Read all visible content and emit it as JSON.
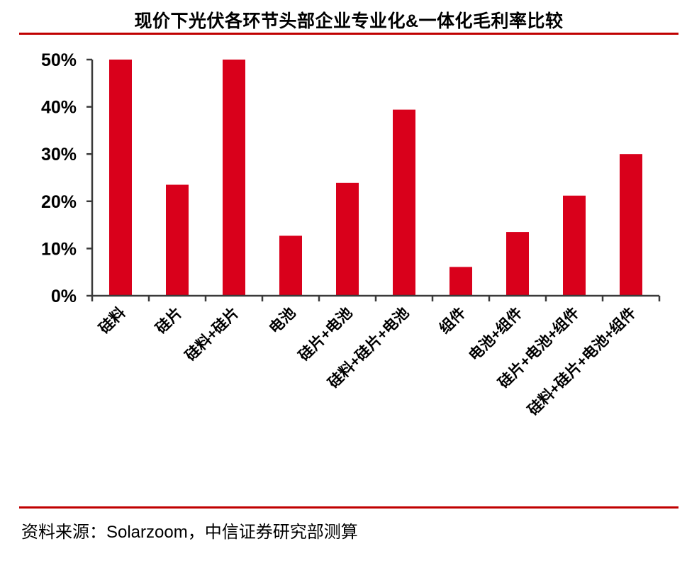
{
  "title": "现价下光伏各环节头部企业专业化&一体化毛利率比较",
  "source": {
    "text": "资料来源：Solarzoom，中信证券研究部测算"
  },
  "colors": {
    "bar": "#d9001b",
    "rule": "#c00000",
    "axis": "#3a3a3a",
    "label": "#000000",
    "background": "#ffffff"
  },
  "chart_data": {
    "type": "bar",
    "title": "现价下光伏各环节头部企业专业化&一体化毛利率比较",
    "categories": [
      "硅料",
      "硅片",
      "硅料+硅片",
      "电池",
      "硅片+电池",
      "硅料+硅片+电池",
      "组件",
      "电池+组件",
      "硅片+电池+组件",
      "硅料+硅片+电池+组件"
    ],
    "values": [
      50,
      23.5,
      50,
      12.7,
      23.9,
      39.4,
      6.1,
      13.5,
      21.2,
      30
    ],
    "unit": "%",
    "xlabel": "",
    "ylabel": "",
    "ylim": [
      0,
      50
    ],
    "yticks": [
      0,
      10,
      20,
      30,
      40,
      50
    ],
    "ytick_labels": [
      "0%",
      "10%",
      "20%",
      "30%",
      "40%",
      "50%"
    ],
    "grid": false,
    "legend": null,
    "x_label_rotation_deg": -45
  }
}
